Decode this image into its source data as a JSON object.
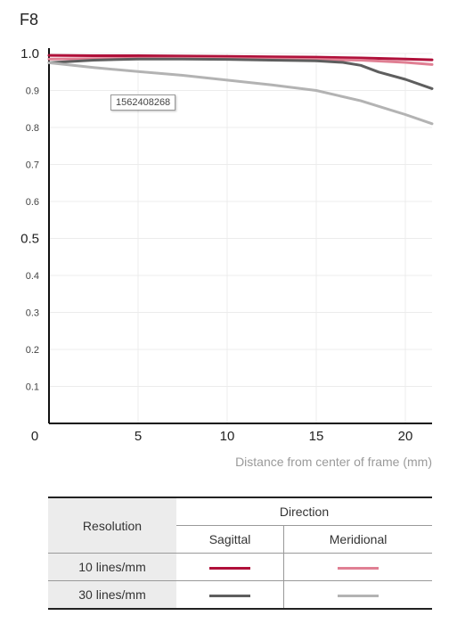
{
  "chart_data": {
    "type": "line",
    "title": "F8",
    "xlabel": "Distance from center of frame (mm)",
    "xlim": [
      0,
      21.5
    ],
    "ylim": [
      0,
      1.0
    ],
    "x_ticks": [
      {
        "value": 0,
        "label": "0"
      },
      {
        "value": 5,
        "label": "5"
      },
      {
        "value": 10,
        "label": "10"
      },
      {
        "value": 15,
        "label": "15"
      },
      {
        "value": 20,
        "label": "20"
      }
    ],
    "y_ticks": [
      {
        "value": 1.0,
        "label": "1.0",
        "major": true
      },
      {
        "value": 0.9,
        "label": "0.9",
        "major": false
      },
      {
        "value": 0.8,
        "label": "0.8",
        "major": false
      },
      {
        "value": 0.7,
        "label": "0.7",
        "major": false
      },
      {
        "value": 0.6,
        "label": "0.6",
        "major": false
      },
      {
        "value": 0.5,
        "label": "0.5",
        "major": true
      },
      {
        "value": 0.4,
        "label": "0.4",
        "major": false
      },
      {
        "value": 0.3,
        "label": "0.3",
        "major": false
      },
      {
        "value": 0.2,
        "label": "0.2",
        "major": false
      },
      {
        "value": 0.1,
        "label": "0.1",
        "major": false
      }
    ],
    "grid": true,
    "series": [
      {
        "name": "10 lines/mm Sagittal",
        "color": "#b0103a",
        "x": [
          0,
          2.5,
          5,
          7.5,
          10,
          12.5,
          15,
          17.5,
          20,
          21.5
        ],
        "y": [
          0.995,
          0.994,
          0.994,
          0.993,
          0.992,
          0.991,
          0.99,
          0.988,
          0.985,
          0.983
        ]
      },
      {
        "name": "10 lines/mm Meridional",
        "color": "#e07f93",
        "x": [
          0,
          2.5,
          5,
          7.5,
          10,
          12.5,
          15,
          17.5,
          20,
          21.5
        ],
        "y": [
          0.985,
          0.986,
          0.987,
          0.987,
          0.986,
          0.985,
          0.984,
          0.982,
          0.976,
          0.97
        ]
      },
      {
        "name": "30 lines/mm Sagittal",
        "color": "#5e5e5e",
        "x": [
          0,
          2.5,
          5,
          7.5,
          10,
          12.5,
          15,
          16.5,
          17.5,
          18.5,
          20,
          21.5
        ],
        "y": [
          0.975,
          0.982,
          0.985,
          0.985,
          0.984,
          0.982,
          0.98,
          0.976,
          0.968,
          0.95,
          0.93,
          0.905
        ]
      },
      {
        "name": "30 lines/mm Meridional",
        "color": "#b3b3b3",
        "x": [
          0,
          2.5,
          5,
          7.5,
          10,
          12.5,
          15,
          17.5,
          20,
          21.5
        ],
        "y": [
          0.975,
          0.962,
          0.951,
          0.941,
          0.928,
          0.915,
          0.9,
          0.872,
          0.835,
          0.81
        ]
      }
    ],
    "annotations": [
      {
        "text": "1562408268"
      }
    ]
  },
  "legend_table": {
    "resolution_header": "Resolution",
    "direction_header": "Direction",
    "sagittal_header": "Sagittal",
    "meridional_header": "Meridional",
    "rows": [
      {
        "label": "10 lines/mm",
        "sagittal_color": "#b0103a",
        "meridional_color": "#e07f93"
      },
      {
        "label": "30 lines/mm",
        "sagittal_color": "#5e5e5e",
        "meridional_color": "#b3b3b3"
      }
    ]
  }
}
